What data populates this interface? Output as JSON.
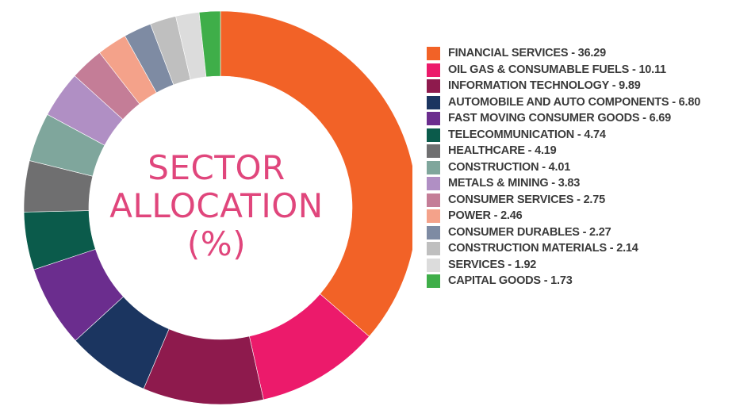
{
  "title_lines": [
    "SECTOR",
    "ALLOCATION",
    "(%)"
  ],
  "chart_data": {
    "type": "pie",
    "donut": true,
    "title": "SECTOR ALLOCATION (%)",
    "legend_position": "right",
    "categories": [
      "FINANCIAL SERVICES",
      "OIL GAS & CONSUMABLE FUELS",
      "INFORMATION TECHNOLOGY",
      "AUTOMOBILE AND AUTO COMPONENTS",
      "FAST MOVING CONSUMER GOODS",
      "TELECOMMUNICATION",
      "HEALTHCARE",
      "CONSTRUCTION",
      "METALS & MINING",
      "CONSUMER SERVICES",
      "POWER",
      "CONSUMER DURABLES",
      "CONSTRUCTION MATERIALS",
      "SERVICES",
      "CAPITAL GOODS"
    ],
    "values": [
      36.29,
      10.11,
      9.89,
      6.8,
      6.69,
      4.74,
      4.19,
      4.01,
      3.83,
      2.75,
      2.46,
      2.27,
      2.14,
      1.92,
      1.73
    ],
    "colors": [
      "#f26227",
      "#ec1a6b",
      "#8e1a4d",
      "#1b3560",
      "#6b2d8e",
      "#0b5b4b",
      "#6f6f70",
      "#7fa69c",
      "#b08fc4",
      "#c47d97",
      "#f4a28a",
      "#7e8ba3",
      "#bfbfbf",
      "#dcdcdc",
      "#3fae49"
    ],
    "legend_labels": [
      "FINANCIAL SERVICES - 36.29",
      "OIL GAS & CONSUMABLE FUELS - 10.11",
      "INFORMATION TECHNOLOGY - 9.89",
      "AUTOMOBILE AND AUTO COMPONENTS - 6.80",
      "FAST MOVING CONSUMER GOODS - 6.69",
      "TELECOMMUNICATION - 4.74",
      "HEALTHCARE - 4.19",
      "CONSTRUCTION - 4.01",
      "METALS & MINING - 3.83",
      "CONSUMER SERVICES - 2.75",
      "POWER - 2.46",
      "CONSUMER DURABLES - 2.27",
      "CONSTRUCTION MATERIALS - 2.14",
      "SERVICES - 1.92",
      "CAPITAL GOODS - 1.73"
    ]
  }
}
